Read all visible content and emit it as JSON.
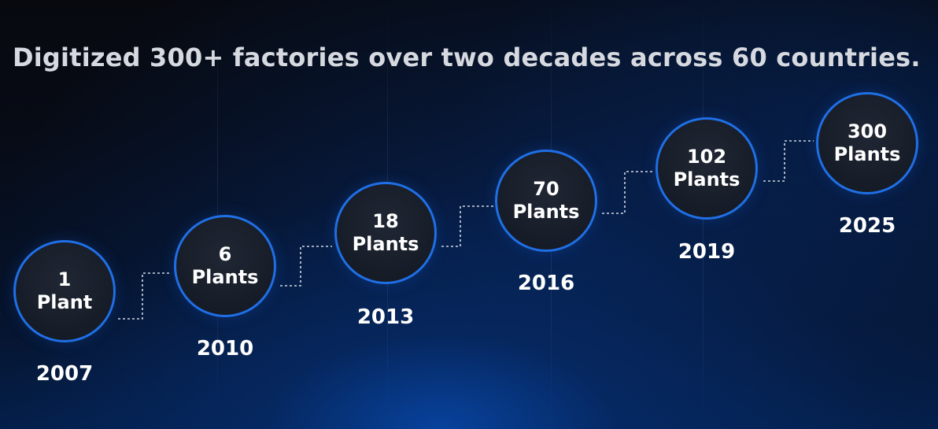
{
  "headline": "Digitized 300+ factories over two decades across 60 countries.",
  "accent_color": "#1f6fe6",
  "milestones": [
    {
      "count": "1",
      "unit": "Plant",
      "year": "2007"
    },
    {
      "count": "6",
      "unit": "Plants",
      "year": "2010"
    },
    {
      "count": "18",
      "unit": "Plants",
      "year": "2013"
    },
    {
      "count": "70",
      "unit": "Plants",
      "year": "2016"
    },
    {
      "count": "102",
      "unit": "Plants",
      "year": "2019"
    },
    {
      "count": "300",
      "unit": "Plants",
      "year": "2025"
    }
  ]
}
